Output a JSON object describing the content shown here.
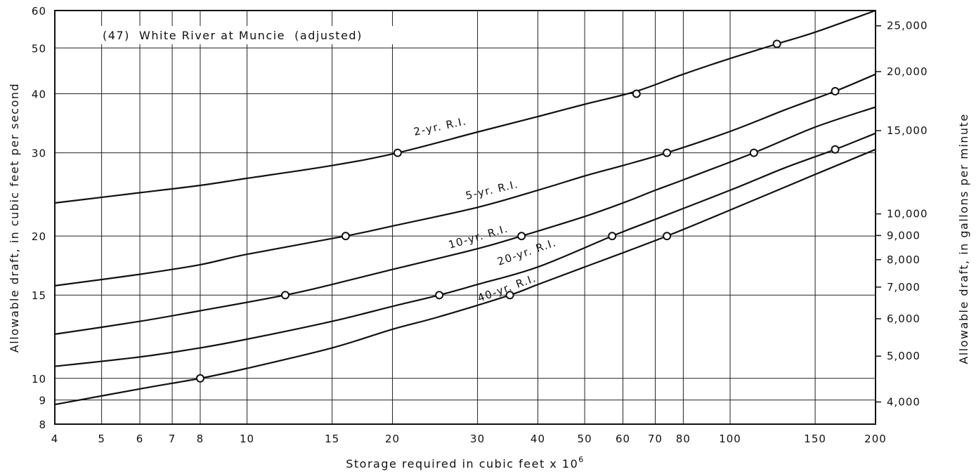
{
  "chart_data": {
    "type": "line",
    "title": "(47)  White River at Muncie  (adjusted)",
    "xlabel": "Storage required in cubic feet x 10",
    "xlabel_exponent": "6",
    "ylabel": "Allowable draft, in cubic feet per second",
    "ylabel_right": "Allowable draft, in gallons per minute",
    "xscale": "log",
    "yscale": "log",
    "xlim": [
      4,
      200
    ],
    "ylim": [
      8,
      60
    ],
    "grid": true,
    "x_ticks": [
      4,
      5,
      6,
      7,
      8,
      10,
      15,
      20,
      30,
      40,
      50,
      60,
      70,
      80,
      100,
      150,
      200
    ],
    "x_tick_labels": [
      "4",
      "5",
      "6",
      "7",
      "8",
      "10",
      "15",
      "20",
      "30",
      "40",
      "50",
      "60",
      "70",
      "80",
      "100",
      "150",
      "200"
    ],
    "y_ticks": [
      8,
      9,
      10,
      15,
      20,
      30,
      40,
      50,
      60
    ],
    "y_tick_labels": [
      "8",
      "9",
      "10",
      "15",
      "20",
      "30",
      "40",
      "50",
      "60"
    ],
    "y_right_ticks": [
      4000,
      5000,
      6000,
      7000,
      8000,
      9000,
      10000,
      15000,
      20000,
      25000
    ],
    "y_right_tick_labels": [
      "4,000",
      "5,000",
      "6,000",
      "7,000",
      "8,000",
      "9,000",
      "10,000",
      "15,000",
      "20,000",
      "25,000"
    ],
    "series": [
      {
        "name": "2-yr. R.I.",
        "x": [
          4,
          6,
          8,
          10,
          15,
          20.5,
          30,
          40,
          50,
          64,
          80,
          100,
          125,
          150,
          200
        ],
        "y": [
          23.5,
          24.7,
          25.6,
          26.5,
          28.2,
          30,
          33.2,
          35.8,
          38,
          40.5,
          44,
          47.5,
          51,
          54,
          60
        ],
        "markers_x": [
          20.5,
          64,
          125
        ],
        "markers_y": [
          30,
          40,
          51
        ]
      },
      {
        "name": "5-yr. R.I.",
        "x": [
          4,
          6,
          8,
          10,
          16,
          20,
          30,
          40,
          50,
          60,
          74,
          100,
          130,
          165,
          200
        ],
        "y": [
          15.7,
          16.6,
          17.4,
          18.3,
          20,
          21,
          23,
          25,
          26.8,
          28.2,
          30,
          33.3,
          37,
          40.5,
          44
        ],
        "markers_x": [
          16,
          74,
          165
        ],
        "markers_y": [
          20,
          30,
          40.5
        ]
      },
      {
        "name": "10-yr. R.I.",
        "x": [
          4,
          6,
          8,
          12,
          15,
          20,
          30,
          37,
          50,
          60,
          70,
          80,
          112,
          150,
          200
        ],
        "y": [
          12.4,
          13.2,
          13.9,
          15,
          15.8,
          17,
          18.8,
          20,
          22,
          23.5,
          25,
          26.3,
          30,
          34,
          37.5
        ],
        "markers_x": [
          12,
          37,
          112
        ],
        "markers_y": [
          15,
          20,
          30
        ]
      },
      {
        "name": "20-yr. R.I.",
        "x": [
          4,
          6,
          8,
          10,
          15,
          20,
          25,
          30,
          40,
          57,
          70,
          100,
          130,
          165,
          200
        ],
        "y": [
          10.6,
          11.1,
          11.6,
          12.1,
          13.2,
          14.2,
          15,
          15.8,
          17.2,
          20,
          21.7,
          25,
          27.9,
          30.5,
          33
        ],
        "markers_x": [
          25,
          57,
          165
        ],
        "markers_y": [
          15,
          20,
          30.5
        ]
      },
      {
        "name": "40-yr. R.I.",
        "x": [
          4,
          6,
          8,
          10,
          15,
          20,
          25,
          35,
          40,
          50,
          74,
          100,
          150,
          200
        ],
        "y": [
          8.8,
          9.5,
          10,
          10.5,
          11.6,
          12.7,
          13.5,
          15,
          15.8,
          17.2,
          20,
          22.7,
          27,
          30.5
        ],
        "markers_x": [
          8,
          35,
          74
        ],
        "markers_y": [
          10,
          15,
          20
        ]
      }
    ]
  }
}
